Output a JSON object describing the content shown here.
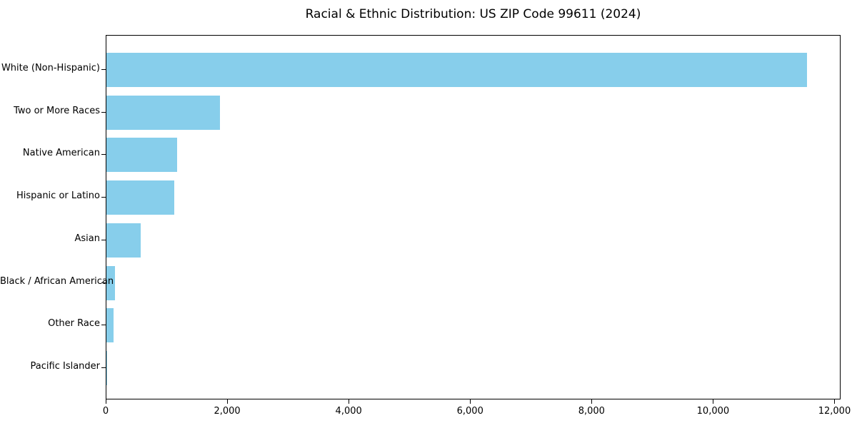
{
  "chart_data": {
    "type": "bar",
    "orientation": "horizontal",
    "title": "Racial & Ethnic Distribution: US ZIP Code 99611 (2024)",
    "categories": [
      "White (Non-Hispanic)",
      "Two or More Races",
      "Native American",
      "Hispanic or Latino",
      "Asian",
      "Black / African American",
      "Other Race",
      "Pacific Islander"
    ],
    "values": [
      11530,
      1870,
      1165,
      1120,
      565,
      145,
      118,
      12
    ],
    "xlabel": "",
    "ylabel": "",
    "xlim": [
      0,
      12100
    ],
    "xticks": [
      0,
      2000,
      4000,
      6000,
      8000,
      10000,
      12000
    ],
    "xtick_labels": [
      "0",
      "2,000",
      "4,000",
      "6,000",
      "8,000",
      "10,000",
      "12,000"
    ],
    "bar_color": "#87CEEB",
    "axis_color": "#000000",
    "text_color": "#000000",
    "background": "#ffffff",
    "grid": false,
    "legend": null
  }
}
